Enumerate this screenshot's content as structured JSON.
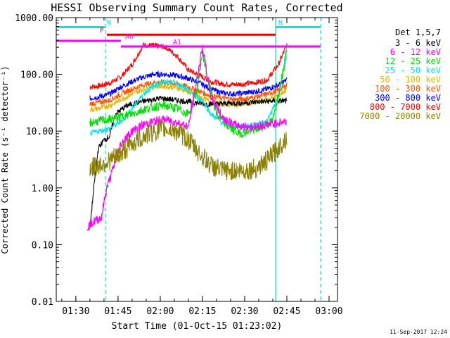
{
  "chart_data": {
    "type": "line",
    "title": "HESSI Observing Summary Count Rates, Corrected",
    "xlabel": "Start Time (01-Oct-15 01:23:02)",
    "ylabel": "Corrected Count Rate (s⁻¹ detector⁻¹)",
    "yscale": "log",
    "ylim": [
      0.01,
      1000
    ],
    "xlim": [
      "01:23:02",
      "03:03:00"
    ],
    "xticks": [
      "01:30",
      "01:45",
      "02:00",
      "02:15",
      "02:30",
      "02:45",
      "03:00"
    ],
    "yticks": [
      "0.01",
      "0.10",
      "1.00",
      "10.00",
      "100.00",
      "1000.00"
    ],
    "legend": {
      "title": "Det 1,5,7",
      "placement": "outside-right",
      "entries": [
        {
          "name": "3 - 6 keV",
          "color": "#000000"
        },
        {
          "name": "6 - 12 keV",
          "color": "#ff00ff"
        },
        {
          "name": "12 - 25 keV",
          "color": "#00dd00"
        },
        {
          "name": "25 - 50 keV",
          "color": "#00e5e5"
        },
        {
          "name": "50 - 100 keV",
          "color": "#e5b800"
        },
        {
          "name": "100 - 300 keV",
          "color": "#ff5500"
        },
        {
          "name": "300 - 800 keV",
          "color": "#0000ff"
        },
        {
          "name": "800 - 7000 keV",
          "color": "#ff0000"
        },
        {
          "name": "7000 - 20000 keV",
          "color": "#8b8000"
        }
      ]
    },
    "series": [
      {
        "name": "800 - 7000 keV",
        "color": "#ff0000",
        "x": [
          "01:35",
          "01:38",
          "01:42",
          "01:46",
          "01:50",
          "01:54",
          "01:58",
          "02:02",
          "02:06",
          "02:10",
          "02:14",
          "02:18",
          "02:22",
          "02:26",
          "02:30",
          "02:34",
          "02:38",
          "02:42",
          "02:45"
        ],
        "y": [
          60,
          62,
          70,
          90,
          150,
          330,
          320,
          300,
          210,
          120,
          95,
          75,
          68,
          66,
          68,
          72,
          80,
          150,
          330
        ]
      },
      {
        "name": "300 - 800 keV",
        "color": "#0000ff",
        "x": [
          "01:35",
          "01:38",
          "01:42",
          "01:46",
          "01:50",
          "01:54",
          "01:58",
          "02:02",
          "02:06",
          "02:10",
          "02:14",
          "02:18",
          "02:22",
          "02:26",
          "02:30",
          "02:34",
          "02:38",
          "02:42",
          "02:45"
        ],
        "y": [
          38,
          40,
          45,
          60,
          75,
          90,
          100,
          100,
          95,
          85,
          70,
          55,
          47,
          45,
          47,
          50,
          55,
          65,
          80
        ]
      },
      {
        "name": "100 - 300 keV",
        "color": "#ff5500",
        "x": [
          "01:35",
          "01:38",
          "01:42",
          "01:46",
          "01:50",
          "01:54",
          "01:58",
          "02:02",
          "02:06",
          "02:10",
          "02:14",
          "02:18",
          "02:22",
          "02:26",
          "02:30",
          "02:34",
          "02:38",
          "02:42",
          "02:45"
        ],
        "y": [
          30,
          32,
          35,
          45,
          55,
          65,
          72,
          72,
          68,
          60,
          50,
          42,
          38,
          36,
          37,
          40,
          45,
          52,
          65
        ]
      },
      {
        "name": "50 - 100 keV",
        "color": "#e5b800",
        "x": [
          "01:35",
          "01:38",
          "01:42",
          "01:46",
          "01:50",
          "01:54",
          "01:58",
          "02:02",
          "02:06",
          "02:10",
          "02:14",
          "02:18",
          "02:22",
          "02:26",
          "02:30",
          "02:34",
          "02:38",
          "02:42",
          "02:45"
        ],
        "y": [
          24,
          25,
          28,
          36,
          45,
          55,
          62,
          62,
          58,
          50,
          40,
          33,
          30,
          29,
          30,
          32,
          36,
          42,
          55
        ]
      },
      {
        "name": "3 - 6 keV",
        "color": "#000000",
        "x": [
          "01:35",
          "01:37",
          "01:38",
          "01:40",
          "01:42",
          "01:44",
          "01:48",
          "01:52",
          "01:56",
          "02:00",
          "02:04",
          "02:08",
          "02:12",
          "02:16",
          "02:20",
          "02:24",
          "02:28",
          "02:32",
          "02:36",
          "02:40",
          "02:45"
        ],
        "y": [
          0.2,
          2,
          5,
          7,
          8,
          20,
          28,
          32,
          35,
          38,
          36,
          34,
          32,
          30,
          30,
          31,
          31,
          32,
          33,
          34,
          34
        ]
      },
      {
        "name": "25 - 50 keV",
        "color": "#00e5e5",
        "x": [
          "01:35",
          "01:38",
          "01:42",
          "01:46",
          "01:50",
          "01:54",
          "01:58",
          "02:02",
          "02:06",
          "02:10",
          "02:13",
          "02:15",
          "02:18",
          "02:22",
          "02:26",
          "02:30",
          "02:34",
          "02:38",
          "02:42",
          "02:45"
        ],
        "y": [
          9,
          10,
          11,
          15,
          25,
          45,
          65,
          75,
          70,
          50,
          40,
          35,
          20,
          14,
          12,
          12,
          13,
          15,
          40,
          300
        ]
      },
      {
        "name": "12 - 25 keV",
        "color": "#00dd00",
        "x": [
          "01:35",
          "01:38",
          "01:42",
          "01:46",
          "01:50",
          "01:54",
          "01:58",
          "02:02",
          "02:06",
          "02:10",
          "02:13",
          "02:15",
          "02:17",
          "02:20",
          "02:24",
          "02:28",
          "02:32",
          "02:36",
          "02:40",
          "02:43",
          "02:45"
        ],
        "y": [
          14,
          15,
          16,
          18,
          20,
          24,
          27,
          28,
          25,
          20,
          50,
          250,
          80,
          20,
          12,
          9,
          10,
          12,
          15,
          80,
          250
        ]
      },
      {
        "name": "6 - 12 keV",
        "color": "#ff00ff",
        "x": [
          "01:34",
          "01:36",
          "01:39",
          "01:41",
          "01:43",
          "01:46",
          "01:50",
          "01:54",
          "01:58",
          "02:02",
          "02:06",
          "02:10",
          "02:13",
          "02:15",
          "02:18",
          "02:22",
          "02:26",
          "02:30",
          "02:34",
          "02:38",
          "02:42",
          "02:45"
        ],
        "y": [
          0.2,
          0.25,
          0.3,
          1,
          2,
          6,
          10,
          13,
          15,
          16,
          14,
          12,
          80,
          300,
          40,
          18,
          13,
          12,
          12,
          13,
          14,
          15
        ]
      },
      {
        "name": "7000 - 20000 keV",
        "color": "#8b8000",
        "x": [
          "01:35",
          "01:38",
          "01:42",
          "01:46",
          "01:50",
          "01:54",
          "01:58",
          "02:02",
          "02:06",
          "02:10",
          "02:14",
          "02:18",
          "02:22",
          "02:26",
          "02:30",
          "02:34",
          "02:38",
          "02:42",
          "02:45"
        ],
        "y": [
          2.2,
          2.5,
          3,
          4,
          6,
          8,
          10,
          11,
          10,
          7,
          4,
          2.5,
          2,
          2,
          2,
          2.2,
          3,
          5,
          8
        ]
      }
    ],
    "attenuator_bars": [
      {
        "name": "N",
        "color": "#00e5e5",
        "y": 680,
        "start": "01:23:02",
        "end": "01:40:30"
      },
      {
        "name": "N",
        "color": "#00e5e5",
        "y": 680,
        "start": "02:41:00",
        "end": "02:57:00"
      },
      {
        "name": "F",
        "color": "#e00000",
        "y": 500,
        "start": "01:41:00",
        "end": "02:41:00"
      },
      {
        "name": "A0",
        "color": "#ff00ff",
        "y": 390,
        "start": "01:23:02",
        "end": "01:46:00"
      },
      {
        "name": "A1",
        "color": "#ff00ff",
        "y": 310,
        "start": "01:46:00",
        "end": "02:57:00"
      }
    ],
    "vertical_markers": [
      {
        "time": "01:40:30",
        "color": "#00e5e5",
        "style": "dashed"
      },
      {
        "time": "02:41:00",
        "color": "#00e5e5",
        "style": "solid"
      },
      {
        "time": "02:57:00",
        "color": "#00e5e5",
        "style": "dashed"
      }
    ],
    "timestamp": "11-Sep-2017 12:24"
  }
}
